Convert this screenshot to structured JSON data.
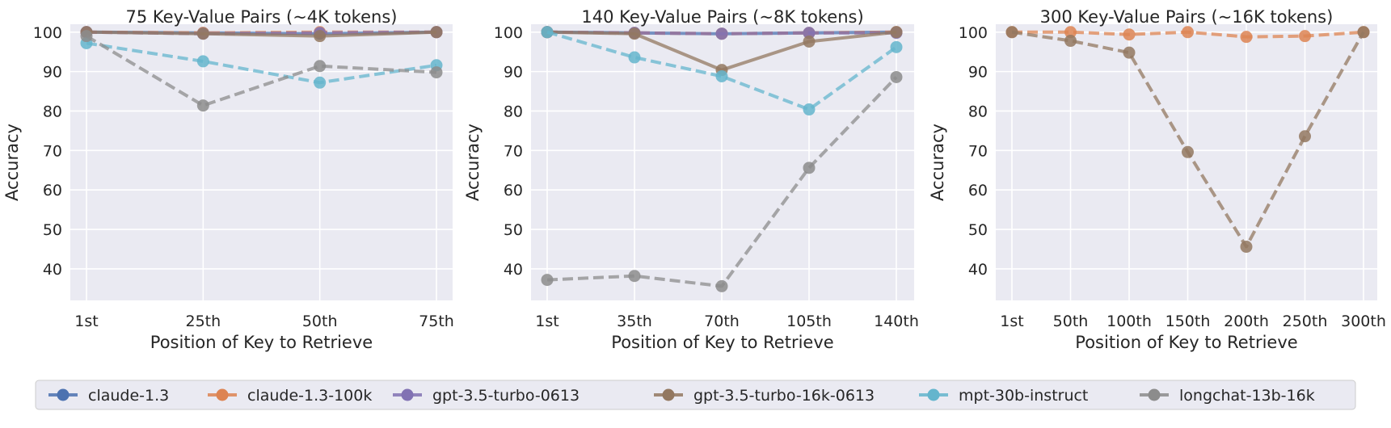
{
  "chart_data": [
    {
      "type": "line",
      "title": "75 Key-Value Pairs (~4K tokens)",
      "xlabel": "Position of Key to Retrieve",
      "ylabel": "Accuracy",
      "categories": [
        "1st",
        "25th",
        "50th",
        "75th"
      ],
      "yticks": [
        40,
        50,
        60,
        70,
        80,
        90,
        100
      ],
      "ylim": [
        32,
        102
      ],
      "grid": true,
      "series": [
        {
          "name": "claude-1.3",
          "values": [
            100,
            99.8,
            99.6,
            100
          ]
        },
        {
          "name": "claude-1.3-100k",
          "values": [
            100,
            99.8,
            100,
            100
          ]
        },
        {
          "name": "gpt-3.5-turbo-0613",
          "values": [
            100,
            99.6,
            99.8,
            100
          ]
        },
        {
          "name": "gpt-3.5-turbo-16k-0613",
          "values": [
            100,
            99.6,
            99,
            100
          ]
        },
        {
          "name": "mpt-30b-instruct",
          "values": [
            97.2,
            92.6,
            87.2,
            91.6
          ]
        },
        {
          "name": "longchat-13b-16k",
          "values": [
            99,
            81.4,
            91.4,
            89.8
          ]
        }
      ]
    },
    {
      "type": "line",
      "title": "140 Key-Value Pairs (~8K tokens)",
      "xlabel": "Position of Key to Retrieve",
      "ylabel": "Accuracy",
      "categories": [
        "1st",
        "35th",
        "70th",
        "105th",
        "140th"
      ],
      "yticks": [
        40,
        50,
        60,
        70,
        80,
        90,
        100
      ],
      "ylim": [
        32,
        102
      ],
      "grid": true,
      "series": [
        {
          "name": "claude-1.3",
          "values": [
            100,
            99.8,
            99.6,
            99.8,
            100
          ]
        },
        {
          "name": "claude-1.3-100k",
          "values": [
            100,
            99.8,
            99.6,
            99.8,
            100
          ]
        },
        {
          "name": "gpt-3.5-turbo-0613",
          "values": [
            100,
            99.8,
            99.6,
            99.8,
            99.8
          ]
        },
        {
          "name": "gpt-3.5-turbo-16k-0613",
          "values": [
            100,
            99.6,
            90.4,
            97.6,
            100
          ]
        },
        {
          "name": "mpt-30b-instruct",
          "values": [
            100,
            93.6,
            88.8,
            80.4,
            96.2
          ]
        },
        {
          "name": "longchat-13b-16k",
          "values": [
            37.2,
            38.2,
            35.6,
            65.6,
            88.6
          ]
        }
      ]
    },
    {
      "type": "line",
      "title": "300 Key-Value Pairs (~16K tokens)",
      "xlabel": "Position of Key to Retrieve",
      "ylabel": "Accuracy",
      "categories": [
        "1st",
        "50th",
        "100th",
        "150th",
        "200th",
        "250th",
        "300th"
      ],
      "yticks": [
        40,
        50,
        60,
        70,
        80,
        90,
        100
      ],
      "ylim": [
        32,
        102
      ],
      "grid": true,
      "series": [
        {
          "name": "claude-1.3-100k",
          "values": [
            100,
            100,
            99.4,
            100,
            98.8,
            99.0,
            100
          ]
        },
        {
          "name": "gpt-3.5-turbo-16k-0613",
          "values": [
            100,
            97.8,
            94.8,
            69.6,
            45.6,
            73.6,
            100
          ]
        }
      ]
    }
  ],
  "legend": {
    "position": "bottom",
    "entries": [
      {
        "name": "claude-1.3",
        "color": "#4C72B0"
      },
      {
        "name": "claude-1.3-100k",
        "color": "#DD8452"
      },
      {
        "name": "gpt-3.5-turbo-0613",
        "color": "#8172B3"
      },
      {
        "name": "gpt-3.5-turbo-16k-0613",
        "color": "#937860"
      },
      {
        "name": "mpt-30b-instruct",
        "color": "#64B5CD"
      },
      {
        "name": "longchat-13b-16k",
        "color": "#8C8C8C"
      }
    ]
  },
  "styles": {
    "claude-1.3": {
      "color": "#4C72B0",
      "dash": "solid"
    },
    "claude-1.3-100k": {
      "color": "#DD8452",
      "dash": "dashed"
    },
    "gpt-3.5-turbo-0613": {
      "color": "#8172B3",
      "dash": "dashed"
    },
    "gpt-3.5-turbo-16k-0613": {
      "color": "#937860",
      "dash": "solid"
    },
    "mpt-30b-instruct": {
      "color": "#64B5CD",
      "dash": "dashed"
    },
    "longchat-13b-16k": {
      "color": "#8C8C8C",
      "dash": "dashed"
    }
  },
  "panel_styles": [
    {},
    {},
    {
      "gpt-3.5-turbo-16k-0613": "dashed"
    }
  ],
  "plot_background": "#EAEAF2"
}
